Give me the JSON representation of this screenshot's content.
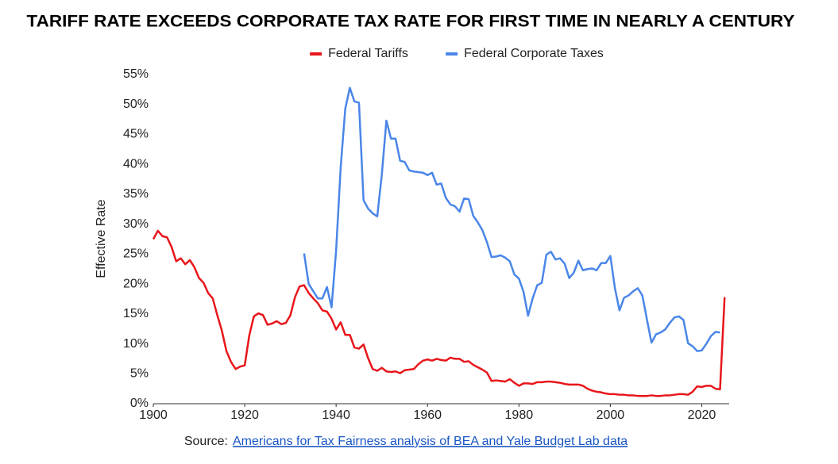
{
  "chart_data": {
    "type": "line",
    "title": "TARIFF RATE EXCEEDS CORPORATE TAX RATE FOR FIRST TIME IN NEARLY A CENTURY",
    "y_label": "Effective Rate",
    "source_label": "Source:",
    "source_link": "Americans for Tax Fairness analysis of BEA and Yale Budget Lab data",
    "legend": "top",
    "grid": false,
    "xlim": [
      1900,
      2026
    ],
    "xticks": [
      1900,
      1920,
      1940,
      1960,
      1980,
      2000,
      2020
    ],
    "ylim": [
      0,
      55
    ],
    "yticks": [
      {
        "value": 0,
        "label": "0%"
      },
      {
        "value": 5,
        "label": "5%"
      },
      {
        "value": 10,
        "label": "10%"
      },
      {
        "value": 15,
        "label": "15%"
      },
      {
        "value": 20,
        "label": "20%"
      },
      {
        "value": 25,
        "label": "25%"
      },
      {
        "value": 30,
        "label": "30%"
      },
      {
        "value": 35,
        "label": "35%"
      },
      {
        "value": 40,
        "label": "40%"
      },
      {
        "value": 45,
        "label": "45%"
      },
      {
        "value": 50,
        "label": "50%"
      },
      {
        "value": 55,
        "label": "55%"
      }
    ],
    "x": [
      1900,
      1901,
      1902,
      1903,
      1904,
      1905,
      1906,
      1907,
      1908,
      1909,
      1910,
      1911,
      1912,
      1913,
      1914,
      1915,
      1916,
      1917,
      1918,
      1919,
      1920,
      1921,
      1922,
      1923,
      1924,
      1925,
      1926,
      1927,
      1928,
      1929,
      1930,
      1931,
      1932,
      1933,
      1934,
      1935,
      1936,
      1937,
      1938,
      1939,
      1940,
      1941,
      1942,
      1943,
      1944,
      1945,
      1946,
      1947,
      1948,
      1949,
      1950,
      1951,
      1952,
      1953,
      1954,
      1955,
      1956,
      1957,
      1958,
      1959,
      1960,
      1961,
      1962,
      1963,
      1964,
      1965,
      1966,
      1967,
      1968,
      1969,
      1970,
      1971,
      1972,
      1973,
      1974,
      1975,
      1976,
      1977,
      1978,
      1979,
      1980,
      1981,
      1982,
      1983,
      1984,
      1985,
      1986,
      1987,
      1988,
      1989,
      1990,
      1991,
      1992,
      1993,
      1994,
      1995,
      1996,
      1997,
      1998,
      1999,
      2000,
      2001,
      2002,
      2003,
      2004,
      2005,
      2006,
      2007,
      2008,
      2009,
      2010,
      2011,
      2012,
      2013,
      2014,
      2015,
      2016,
      2017,
      2018,
      2019,
      2020,
      2021,
      2022,
      2023,
      2024,
      2025
    ],
    "series": [
      {
        "name": "Federal Tariffs",
        "color": "#e8161b",
        "values": [
          27.5,
          28.9,
          28.0,
          27.8,
          26.2,
          23.8,
          24.3,
          23.3,
          24.0,
          22.8,
          21.0,
          20.2,
          18.5,
          17.6,
          14.8,
          12.2,
          8.8,
          7.0,
          5.8,
          6.2,
          6.4,
          11.4,
          14.6,
          15.1,
          14.8,
          13.2,
          13.4,
          13.8,
          13.3,
          13.5,
          14.8,
          17.8,
          19.6,
          19.8,
          18.5,
          17.6,
          16.8,
          15.6,
          15.4,
          14.2,
          12.4,
          13.6,
          11.5,
          11.5,
          9.4,
          9.2,
          9.9,
          7.6,
          5.8,
          5.5,
          6.0,
          5.4,
          5.3,
          5.4,
          5.1,
          5.6,
          5.7,
          5.8,
          6.6,
          7.2,
          7.4,
          7.2,
          7.5,
          7.3,
          7.2,
          7.7,
          7.5,
          7.5,
          7.0,
          7.1,
          6.5,
          6.1,
          5.7,
          5.2,
          3.8,
          3.9,
          3.8,
          3.7,
          4.1,
          3.5,
          3.0,
          3.4,
          3.4,
          3.3,
          3.6,
          3.6,
          3.7,
          3.7,
          3.6,
          3.5,
          3.3,
          3.2,
          3.2,
          3.2,
          3.0,
          2.5,
          2.2,
          2.0,
          1.9,
          1.7,
          1.6,
          1.6,
          1.5,
          1.5,
          1.4,
          1.4,
          1.3,
          1.3,
          1.3,
          1.4,
          1.3,
          1.3,
          1.4,
          1.4,
          1.5,
          1.6,
          1.6,
          1.5,
          2.0,
          2.9,
          2.8,
          3.0,
          3.0,
          2.5,
          2.4,
          17.8
        ]
      },
      {
        "name": "Federal Corporate Taxes",
        "color": "#4a86e8",
        "values": [
          null,
          null,
          null,
          null,
          null,
          null,
          null,
          null,
          null,
          null,
          null,
          null,
          null,
          null,
          null,
          null,
          null,
          null,
          null,
          null,
          null,
          null,
          null,
          null,
          null,
          null,
          null,
          null,
          null,
          null,
          null,
          null,
          null,
          25.1,
          20.0,
          18.8,
          17.6,
          17.6,
          19.5,
          16.1,
          25.6,
          39.5,
          49.3,
          52.8,
          50.5,
          50.3,
          34.0,
          32.6,
          31.8,
          31.3,
          38.3,
          47.3,
          44.3,
          44.3,
          40.6,
          40.4,
          39.0,
          38.8,
          38.7,
          38.6,
          38.2,
          38.6,
          36.6,
          36.8,
          34.4,
          33.3,
          33.0,
          32.1,
          34.3,
          34.2,
          31.4,
          30.3,
          29.0,
          27.0,
          24.5,
          24.6,
          24.8,
          24.4,
          23.8,
          21.6,
          20.9,
          18.7,
          14.7,
          17.6,
          19.8,
          20.2,
          24.9,
          25.4,
          24.1,
          24.3,
          23.4,
          21.0,
          21.9,
          23.9,
          22.3,
          22.5,
          22.6,
          22.3,
          23.5,
          23.5,
          24.7,
          19.3,
          15.6,
          17.7,
          18.1,
          18.8,
          19.3,
          18.1,
          14.1,
          10.2,
          11.6,
          11.9,
          12.4,
          13.5,
          14.4,
          14.6,
          14.0,
          10.1,
          9.6,
          8.8,
          8.9,
          10.0,
          11.3,
          12.0,
          11.9,
          null
        ]
      }
    ]
  }
}
